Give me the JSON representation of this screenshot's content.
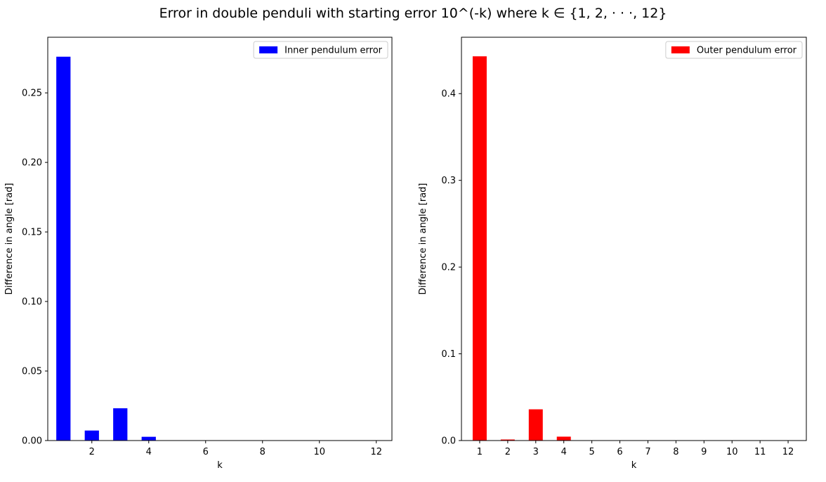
{
  "figure": {
    "title": "Error in double penduli with starting error 10^(-k) where k ∈ {1, 2, · · ·, 12}"
  },
  "chart_data": [
    {
      "type": "bar",
      "x": [
        1,
        2,
        3,
        4,
        5,
        6,
        7,
        8,
        9,
        10,
        11,
        12
      ],
      "values": [
        0.276,
        0.0072,
        0.0232,
        0.0027,
        0.0002,
        2e-05,
        0,
        0,
        0,
        0,
        0,
        0
      ],
      "xlabel": "k",
      "ylabel": "Difference in angle [rad]",
      "xlim": [
        0.45,
        12.55
      ],
      "ylim": [
        0,
        0.29
      ],
      "xticks": [
        2,
        4,
        6,
        8,
        10,
        12
      ],
      "xtick_labels": [
        "2",
        "4",
        "6",
        "8",
        "10",
        "12"
      ],
      "yticks": [
        0,
        0.05,
        0.1,
        0.15,
        0.2,
        0.25
      ],
      "ytick_labels": [
        "0.00",
        "0.05",
        "0.10",
        "0.15",
        "0.20",
        "0.25"
      ],
      "bar_width": 0.5,
      "color": "#0000ff",
      "legend": "Inner pendulum error",
      "legend_position": "top-right",
      "grid": false
    },
    {
      "type": "bar",
      "x": [
        1,
        2,
        3,
        4,
        5,
        6,
        7,
        8,
        9,
        10,
        11,
        12
      ],
      "values": [
        0.443,
        0.0012,
        0.036,
        0.0045,
        0.0003,
        3e-05,
        0,
        0,
        0,
        0,
        0,
        0
      ],
      "xlabel": "k",
      "ylabel": "Difference in angle [rad]",
      "xlim": [
        0.35,
        12.65
      ],
      "ylim": [
        0,
        0.465
      ],
      "xticks": [
        1,
        2,
        3,
        4,
        5,
        6,
        7,
        8,
        9,
        10,
        11,
        12
      ],
      "xtick_labels": [
        "1",
        "2",
        "3",
        "4",
        "5",
        "6",
        "7",
        "8",
        "9",
        "10",
        "11",
        "12"
      ],
      "yticks": [
        0,
        0.1,
        0.2,
        0.3,
        0.4
      ],
      "ytick_labels": [
        "0.0",
        "0.1",
        "0.2",
        "0.3",
        "0.4"
      ],
      "bar_width": 0.5,
      "color": "#ff0000",
      "legend": "Outer pendulum error",
      "legend_position": "top-right",
      "grid": false
    }
  ]
}
